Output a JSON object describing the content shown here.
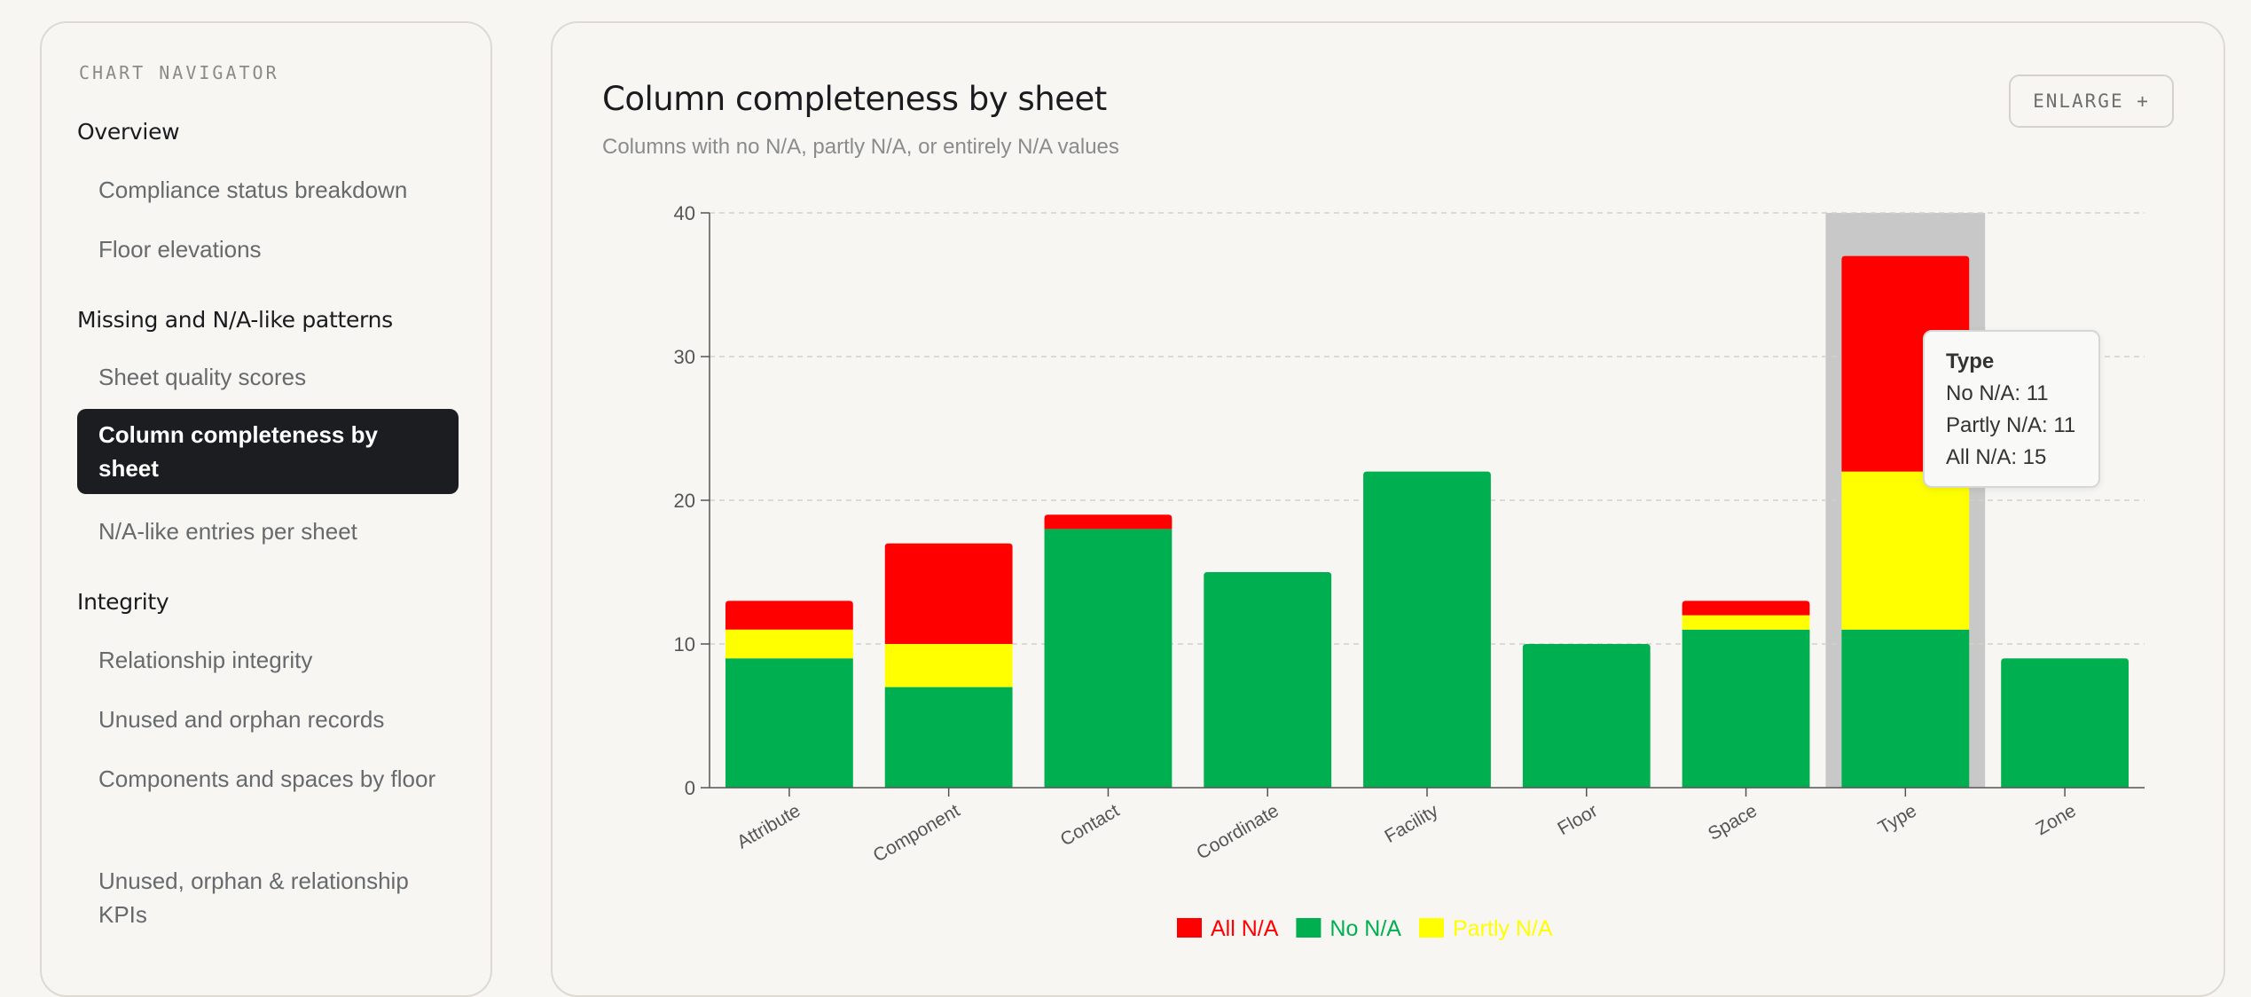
{
  "sidebar": {
    "title": "CHART NAVIGATOR",
    "groups": [
      {
        "label": "Overview"
      },
      {
        "label": "Missing and N/A-like patterns"
      },
      {
        "label": "Integrity"
      }
    ],
    "items": [
      {
        "label": "Compliance status breakdown"
      },
      {
        "label": "Floor elevations"
      },
      {
        "label": "Sheet quality scores"
      },
      {
        "label": "Column completeness by sheet"
      },
      {
        "label": "N/A-like entries per sheet"
      },
      {
        "label": "Relationship integrity"
      },
      {
        "label": "Unused and orphan records"
      },
      {
        "label": "Components and spaces by floor"
      },
      {
        "label": "Unused, orphan & relationship KPIs"
      }
    ]
  },
  "card": {
    "title": "Column completeness by sheet",
    "subtitle": "Columns with no N/A, partly N/A, or entirely N/A values",
    "enlarge_label": "ENLARGE +"
  },
  "tooltip": {
    "title": "Type",
    "lines": [
      "No N/A: 11",
      "Partly N/A: 11",
      "All N/A: 15"
    ]
  },
  "colors": {
    "no_na": "#00b050",
    "partly_na": "#ffff00",
    "all_na": "#ff0000",
    "hover_band": "#c8c8c8"
  },
  "chart_data": {
    "type": "bar",
    "stacked": true,
    "title": "",
    "xlabel": "",
    "ylabel": "",
    "ylim": [
      0,
      40
    ],
    "yticks": [
      0,
      10,
      20,
      30,
      40
    ],
    "grid": true,
    "legend_position": "bottom",
    "highlighted_category": "Type",
    "categories": [
      "Attribute",
      "Component",
      "Contact",
      "Coordinate",
      "Facility",
      "Floor",
      "Space",
      "Type",
      "Zone"
    ],
    "series": [
      {
        "name": "No N/A",
        "color": "#00b050",
        "values": [
          9,
          7,
          18,
          15,
          22,
          10,
          11,
          11,
          9
        ]
      },
      {
        "name": "Partly N/A",
        "color": "#ffff00",
        "values": [
          2,
          3,
          0,
          0,
          0,
          0,
          1,
          11,
          0
        ]
      },
      {
        "name": "All N/A",
        "color": "#ff0000",
        "values": [
          2,
          7,
          1,
          0,
          0,
          0,
          1,
          15,
          0
        ]
      }
    ],
    "legend": [
      {
        "name": "All N/A",
        "color": "#ff0000"
      },
      {
        "name": "No N/A",
        "color": "#00b050"
      },
      {
        "name": "Partly N/A",
        "color": "#ffff00"
      }
    ]
  }
}
